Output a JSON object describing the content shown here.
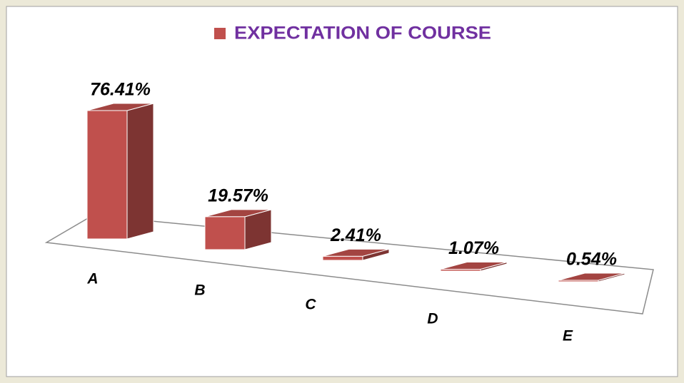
{
  "chart_data": {
    "type": "bar3d",
    "categories": [
      "A",
      "B",
      "C",
      "D",
      "E"
    ],
    "series": [
      {
        "name": "EXPECTATION OF COURSE",
        "color": "#c0504d",
        "values": [
          76.41,
          19.57,
          2.41,
          1.07,
          0.54
        ],
        "value_labels": [
          "76.41%",
          "19.57%",
          "2.41%",
          "1.07%",
          "0.54%"
        ]
      }
    ],
    "legend": "top"
  }
}
